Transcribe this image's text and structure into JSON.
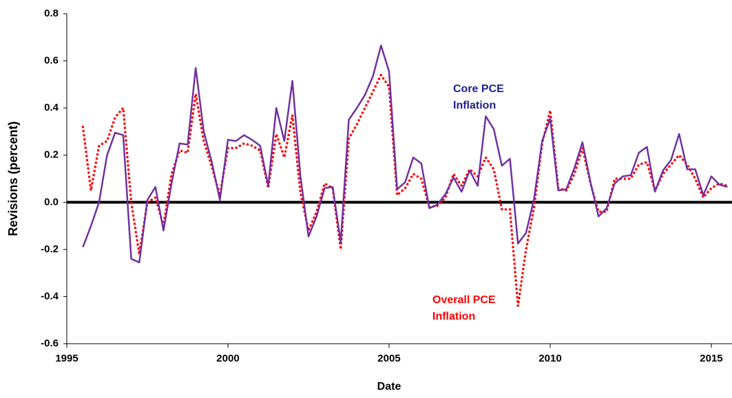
{
  "chart_data": {
    "type": "line",
    "xlabel": "Date",
    "ylabel": "Revisions (percent)",
    "xlim": [
      1995,
      2015.65
    ],
    "xticks": [
      1995,
      2000,
      2005,
      2010,
      2015
    ],
    "ylim": [
      -0.6,
      0.8
    ],
    "yticks": [
      -0.6,
      -0.4,
      -0.2,
      {
        "value": 0,
        "label": "0.0"
      },
      0.2,
      0.4,
      0.6,
      0.8
    ],
    "x": [
      1995.5,
      1995.75,
      1996,
      1996.25,
      1996.5,
      1996.75,
      1997,
      1997.25,
      1997.5,
      1997.75,
      1998,
      1998.25,
      1998.5,
      1998.75,
      1999,
      1999.25,
      1999.5,
      1999.75,
      2000,
      2000.25,
      2000.5,
      2000.75,
      2001,
      2001.25,
      2001.5,
      2001.75,
      2002,
      2002.25,
      2002.5,
      2002.75,
      2003,
      2003.25,
      2003.5,
      2003.75,
      2004,
      2004.25,
      2004.5,
      2004.75,
      2005,
      2005.25,
      2005.5,
      2005.75,
      2006,
      2006.25,
      2006.5,
      2006.75,
      2007,
      2007.25,
      2007.5,
      2007.75,
      2008,
      2008.25,
      2008.5,
      2008.75,
      2009,
      2009.25,
      2009.5,
      2009.75,
      2010,
      2010.25,
      2010.5,
      2010.75,
      2011,
      2011.25,
      2011.5,
      2011.75,
      2012,
      2012.25,
      2012.5,
      2012.75,
      2013,
      2013.25,
      2013.5,
      2013.75,
      2014,
      2014.25,
      2014.5,
      2014.75,
      2015,
      2015.25,
      2015.5
    ],
    "series": [
      {
        "name": "Core PCE Inflation",
        "color": "#7030a0",
        "line_style": "solid",
        "values": [
          -0.19,
          -0.1,
          0,
          0.2,
          0.295,
          0.285,
          -0.24,
          -0.255,
          0.01,
          0.065,
          -0.12,
          0.08,
          0.25,
          0.245,
          0.57,
          0.3,
          0.17,
          0.01,
          0.265,
          0.26,
          0.285,
          0.265,
          0.24,
          0.07,
          0.4,
          0.26,
          0.515,
          0.11,
          -0.145,
          -0.06,
          0.06,
          0.065,
          -0.17,
          0.35,
          0.4,
          0.455,
          0.535,
          0.665,
          0.555,
          0.055,
          0.085,
          0.19,
          0.165,
          -0.025,
          -0.01,
          0.035,
          0.105,
          0.045,
          0.135,
          0.07,
          0.365,
          0.31,
          0.155,
          0.185,
          -0.175,
          -0.13,
          0.015,
          0.26,
          0.355,
          0.05,
          0.055,
          0.145,
          0.255,
          0.085,
          -0.06,
          -0.025,
          0.08,
          0.11,
          0.115,
          0.21,
          0.235,
          0.045,
          0.135,
          0.18,
          0.29,
          0.14,
          0.14,
          0.03,
          0.11,
          0.075,
          0.065
        ]
      },
      {
        "name": "Overall PCE Inflation",
        "color": "#ff0000",
        "line_style": "dotted",
        "values": [
          0.32,
          0.05,
          0.24,
          0.26,
          0.36,
          0.4,
          0,
          -0.22,
          0,
          0.02,
          -0.1,
          0.12,
          0.22,
          0.21,
          0.46,
          0.26,
          0.15,
          0.03,
          0.23,
          0.23,
          0.25,
          0.24,
          0.22,
          0.06,
          0.29,
          0.19,
          0.37,
          0.04,
          -0.12,
          -0.04,
          0.08,
          0.06,
          -0.2,
          0.27,
          0.33,
          0.4,
          0.47,
          0.54,
          0.49,
          0.03,
          0.06,
          0.12,
          0.1,
          -0.02,
          -0.015,
          0.02,
          0.12,
          0.07,
          0.14,
          0.11,
          0.19,
          0.14,
          -0.03,
          -0.03,
          -0.44,
          -0.2,
          -0.02,
          0.25,
          0.39,
          0.06,
          0.05,
          0.12,
          0.23,
          0.08,
          -0.04,
          -0.04,
          0.1,
          0.1,
          0.1,
          0.16,
          0.17,
          0.05,
          0.12,
          0.16,
          0.2,
          0.16,
          0.1,
          0.02,
          0.06,
          0.08,
          0.07
        ]
      }
    ],
    "annotations": [
      {
        "lines": [
          "Core PCE",
          "Inflation"
        ],
        "color": "#1f1f8f"
      },
      {
        "lines": [
          "Overall PCE",
          "Inflation"
        ],
        "color": "#ff0000"
      }
    ]
  }
}
